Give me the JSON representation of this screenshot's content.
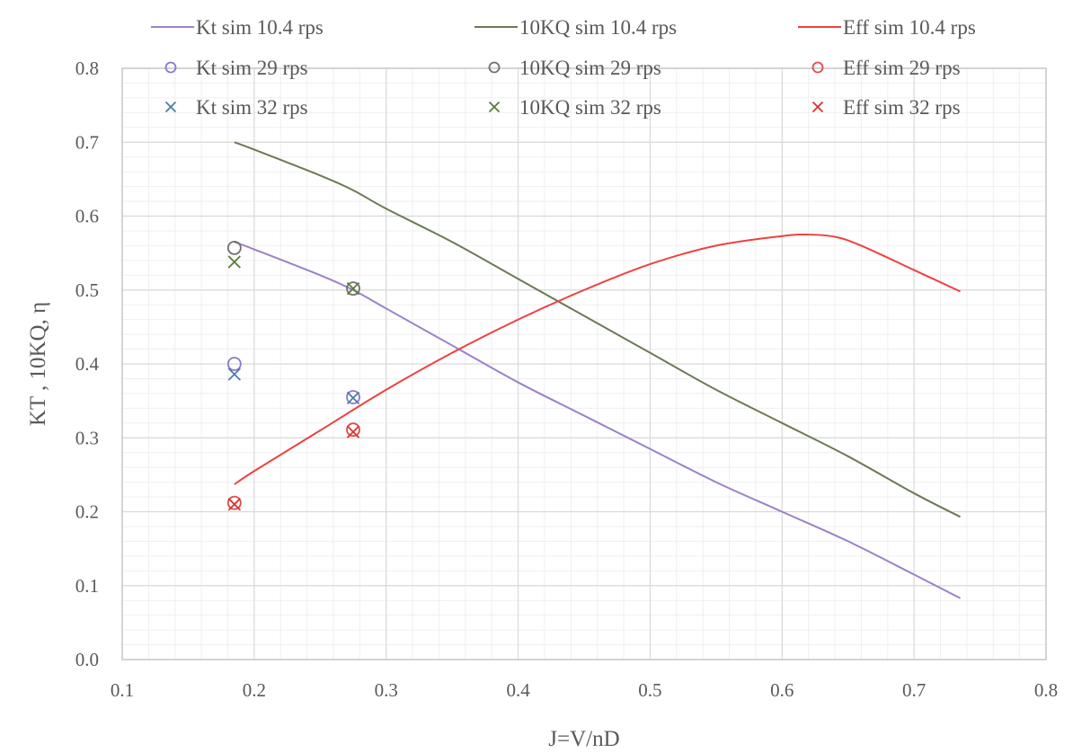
{
  "chart_data": {
    "type": "line",
    "title": "",
    "xlabel": "J=V/nD",
    "ylabel": "KT , 10KQ, η",
    "xlim": [
      0.1,
      0.8
    ],
    "ylim": [
      0.0,
      0.8
    ],
    "x_ticks": [
      "0.1",
      "0.2",
      "0.3",
      "0.4",
      "0.5",
      "0.6",
      "0.7",
      "0.8"
    ],
    "y_ticks": [
      "0.0",
      "0.1",
      "0.2",
      "0.3",
      "0.4",
      "0.5",
      "0.6",
      "0.7",
      "0.8"
    ],
    "x_tick_values": [
      0.1,
      0.2,
      0.3,
      0.4,
      0.5,
      0.6,
      0.7,
      0.8
    ],
    "y_tick_values": [
      0.0,
      0.1,
      0.2,
      0.3,
      0.4,
      0.5,
      0.6,
      0.7,
      0.8
    ],
    "grid": true,
    "minor_grid": true,
    "legend_position": "top",
    "series": [
      {
        "name": "Kt sim 10.4 rps",
        "kind": "line",
        "color": "#9b82c9",
        "x": [
          0.185,
          0.2,
          0.25,
          0.275,
          0.3,
          0.35,
          0.4,
          0.45,
          0.5,
          0.55,
          0.6,
          0.65,
          0.7,
          0.735
        ],
        "y": [
          0.565,
          0.555,
          0.52,
          0.5,
          0.475,
          0.425,
          0.375,
          0.33,
          0.285,
          0.24,
          0.2,
          0.16,
          0.115,
          0.083
        ]
      },
      {
        "name": "10KQ sim 10.4 rps",
        "kind": "line",
        "color": "#6b7a55",
        "x": [
          0.185,
          0.2,
          0.25,
          0.275,
          0.3,
          0.35,
          0.4,
          0.45,
          0.5,
          0.55,
          0.6,
          0.65,
          0.7,
          0.735
        ],
        "y": [
          0.7,
          0.69,
          0.655,
          0.635,
          0.61,
          0.565,
          0.515,
          0.465,
          0.415,
          0.365,
          0.32,
          0.275,
          0.225,
          0.193
        ]
      },
      {
        "name": "Eff sim 10.4 rps",
        "kind": "line",
        "color": "#f04040",
        "x": [
          0.185,
          0.2,
          0.25,
          0.3,
          0.35,
          0.4,
          0.45,
          0.5,
          0.55,
          0.6,
          0.62,
          0.64,
          0.66,
          0.7,
          0.735
        ],
        "y": [
          0.237,
          0.255,
          0.31,
          0.365,
          0.415,
          0.46,
          0.5,
          0.535,
          0.56,
          0.573,
          0.575,
          0.572,
          0.56,
          0.527,
          0.498
        ]
      },
      {
        "name": "Kt sim 29 rps",
        "kind": "marker-circle",
        "color": "#8a78cc",
        "x": [
          0.185,
          0.275
        ],
        "y": [
          0.4,
          0.355
        ]
      },
      {
        "name": "10KQ sim 29 rps",
        "kind": "marker-circle",
        "color": "#707070",
        "x": [
          0.185,
          0.275
        ],
        "y": [
          0.557,
          0.502
        ]
      },
      {
        "name": "Eff sim 29 rps",
        "kind": "marker-circle",
        "color": "#e34a4a",
        "x": [
          0.185,
          0.275
        ],
        "y": [
          0.212,
          0.311
        ]
      },
      {
        "name": "Kt sim 32 rps",
        "kind": "marker-x",
        "color": "#4a7ea8",
        "x": [
          0.185,
          0.275
        ],
        "y": [
          0.386,
          0.354
        ]
      },
      {
        "name": "10KQ sim 32 rps",
        "kind": "marker-x",
        "color": "#5a7a3a",
        "x": [
          0.185,
          0.275
        ],
        "y": [
          0.538,
          0.502
        ]
      },
      {
        "name": "Eff sim 32 rps",
        "kind": "marker-x",
        "color": "#d93030",
        "x": [
          0.185,
          0.275
        ],
        "y": [
          0.21,
          0.308
        ]
      }
    ]
  }
}
